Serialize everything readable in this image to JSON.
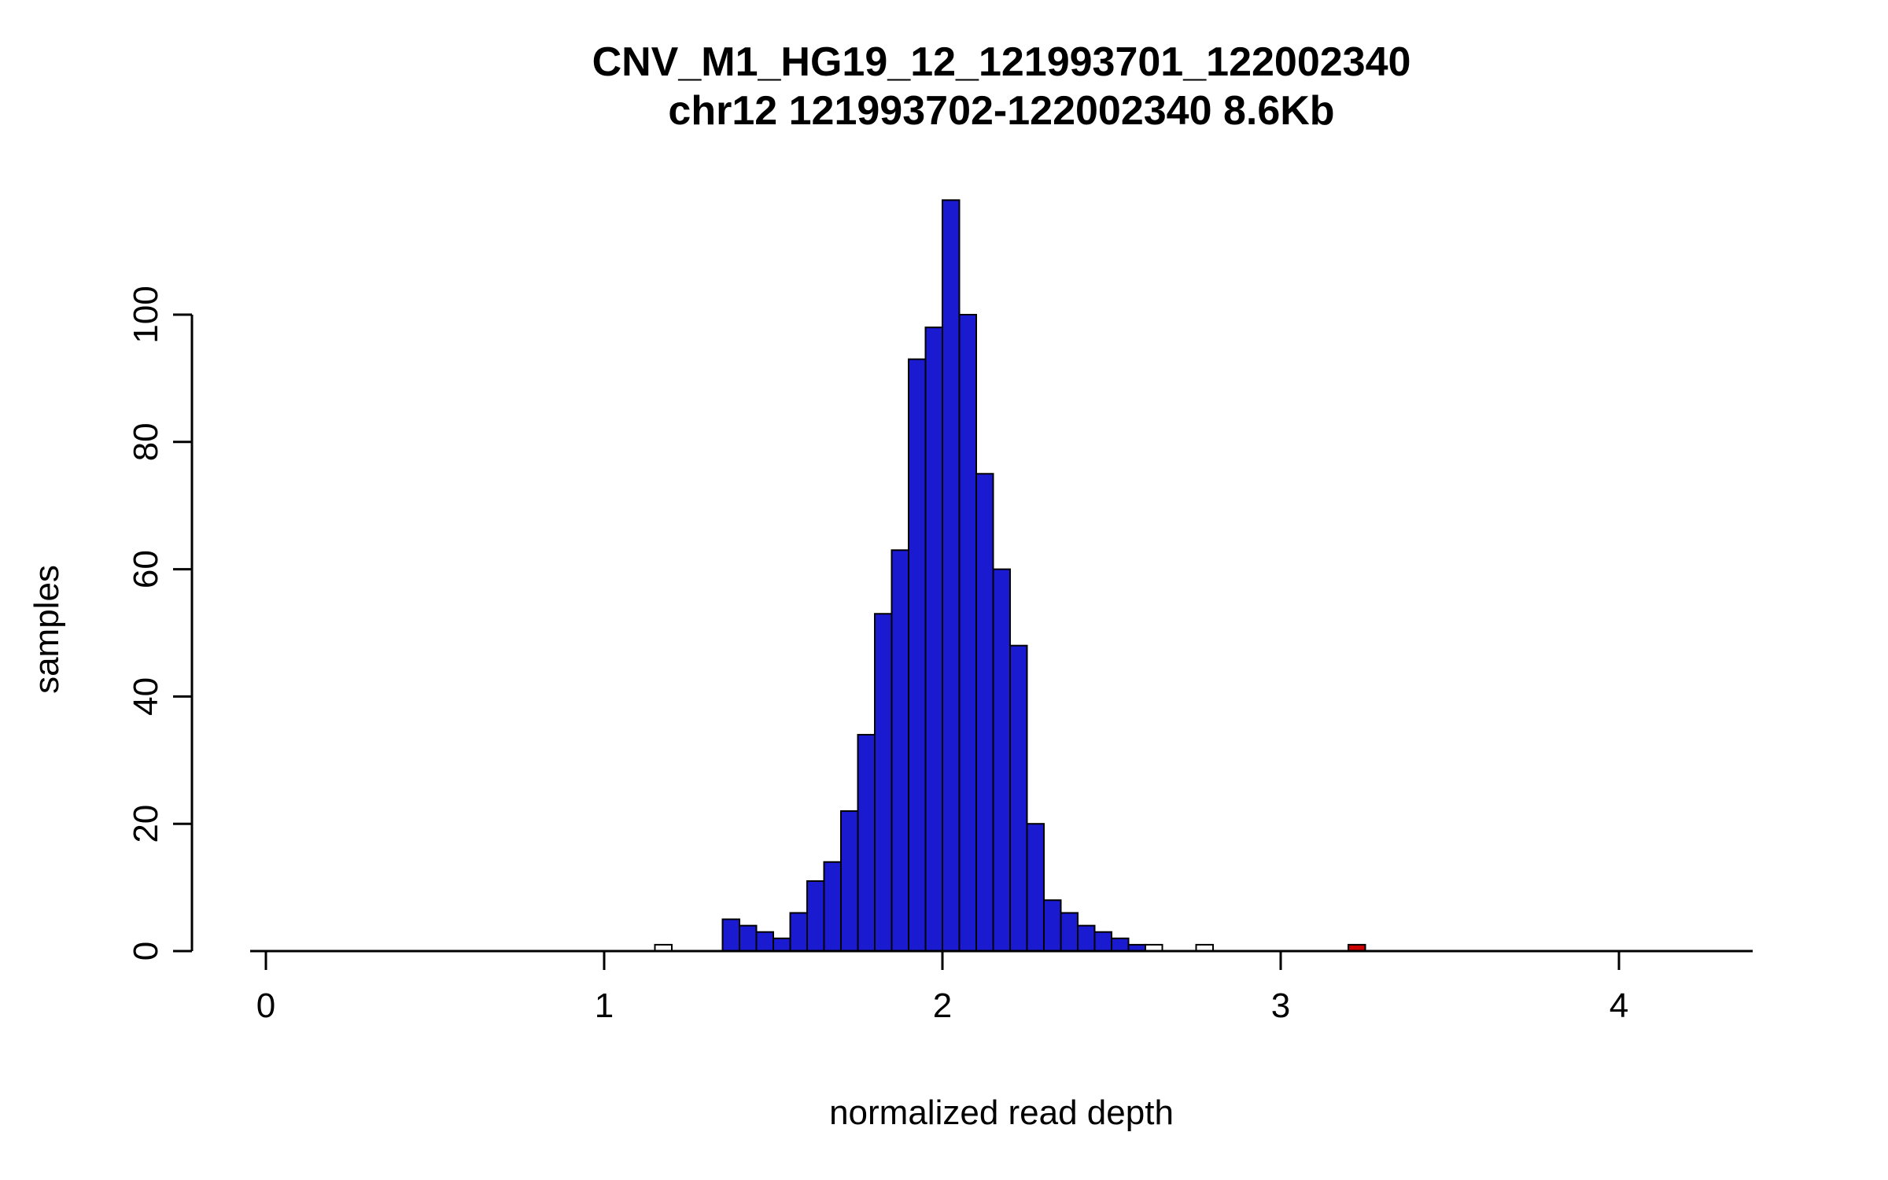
{
  "chart_data": {
    "type": "bar",
    "subtype": "histogram",
    "title": "CNV_M1_HG19_12_121993701_122002340",
    "subtitle": "chr12 121993702-122002340 8.6Kb",
    "xlabel": "normalized read depth",
    "ylabel": "samples",
    "xlim": [
      -0.05,
      4.4
    ],
    "ylim": [
      0,
      100
    ],
    "x_ticks": [
      0,
      1,
      2,
      3,
      4
    ],
    "y_ticks": [
      0,
      20,
      40,
      60,
      80,
      100
    ],
    "grid": false,
    "legend": "none",
    "bin_width": 0.05,
    "colors": {
      "bar_default": "#1a1ad1",
      "bar_outlier_low": "#ffffff",
      "bar_outlier_high": "#cc0000",
      "stroke": "#000000"
    },
    "bins": [
      {
        "x": 1.15,
        "count": 1,
        "color": "#ffffff"
      },
      {
        "x": 1.35,
        "count": 5
      },
      {
        "x": 1.4,
        "count": 4
      },
      {
        "x": 1.45,
        "count": 3
      },
      {
        "x": 1.5,
        "count": 2
      },
      {
        "x": 1.55,
        "count": 6
      },
      {
        "x": 1.6,
        "count": 11
      },
      {
        "x": 1.65,
        "count": 14
      },
      {
        "x": 1.7,
        "count": 22
      },
      {
        "x": 1.75,
        "count": 34
      },
      {
        "x": 1.8,
        "count": 53
      },
      {
        "x": 1.85,
        "count": 63
      },
      {
        "x": 1.9,
        "count": 93
      },
      {
        "x": 1.95,
        "count": 98
      },
      {
        "x": 2.0,
        "count": 118
      },
      {
        "x": 2.05,
        "count": 100
      },
      {
        "x": 2.1,
        "count": 75
      },
      {
        "x": 2.15,
        "count": 60
      },
      {
        "x": 2.2,
        "count": 48
      },
      {
        "x": 2.25,
        "count": 20
      },
      {
        "x": 2.3,
        "count": 8
      },
      {
        "x": 2.35,
        "count": 6
      },
      {
        "x": 2.4,
        "count": 4
      },
      {
        "x": 2.45,
        "count": 3
      },
      {
        "x": 2.5,
        "count": 2
      },
      {
        "x": 2.55,
        "count": 1
      },
      {
        "x": 2.6,
        "count": 1,
        "color": "#ffffff"
      },
      {
        "x": 2.75,
        "count": 1,
        "color": "#ffffff"
      },
      {
        "x": 3.2,
        "count": 1,
        "color": "#cc0000"
      }
    ]
  }
}
